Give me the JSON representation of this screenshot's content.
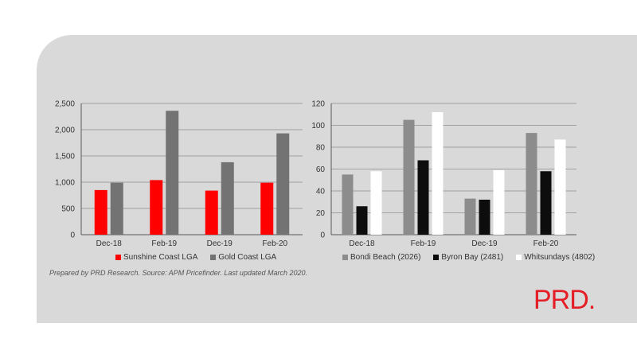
{
  "chart_data": [
    {
      "type": "bar",
      "categories": [
        "Dec-18",
        "Feb-19",
        "Dec-19",
        "Feb-20"
      ],
      "series": [
        {
          "name": "Sunshine Coast LGA",
          "values": [
            850,
            1040,
            840,
            990
          ],
          "color": "#ff0000"
        },
        {
          "name": "Gold Coast LGA",
          "values": [
            990,
            2360,
            1380,
            1930
          ],
          "color": "#737373"
        }
      ],
      "yticks": [
        "0",
        "500",
        "1,000",
        "1,500",
        "2,000",
        "2,500"
      ],
      "ylim": [
        0,
        2500
      ],
      "grid": true,
      "legend": "bottom"
    },
    {
      "type": "bar",
      "categories": [
        "Dec-18",
        "Feb-19",
        "Dec-19",
        "Feb-20"
      ],
      "series": [
        {
          "name": "Bondi Beach (2026)",
          "values": [
            55,
            105,
            33,
            93
          ],
          "color": "#8c8c8c"
        },
        {
          "name": "Byron Bay (2481)",
          "values": [
            26,
            68,
            32,
            58
          ],
          "color": "#0d0d0d"
        },
        {
          "name": "Whitsundays (4802)",
          "values": [
            58,
            112,
            59,
            87
          ],
          "color": "#ffffff"
        }
      ],
      "yticks": [
        "0",
        "20",
        "40",
        "60",
        "80",
        "100",
        "120"
      ],
      "ylim": [
        0,
        120
      ],
      "grid": true,
      "legend": "bottom"
    }
  ],
  "footnote": "Prepared by PRD Research. Source: APM Pricefinder. Last updated March 2020.",
  "brand": {
    "logo_text": "PRD.",
    "color": "#e41e26"
  },
  "panel_color": "#d9d9d9"
}
